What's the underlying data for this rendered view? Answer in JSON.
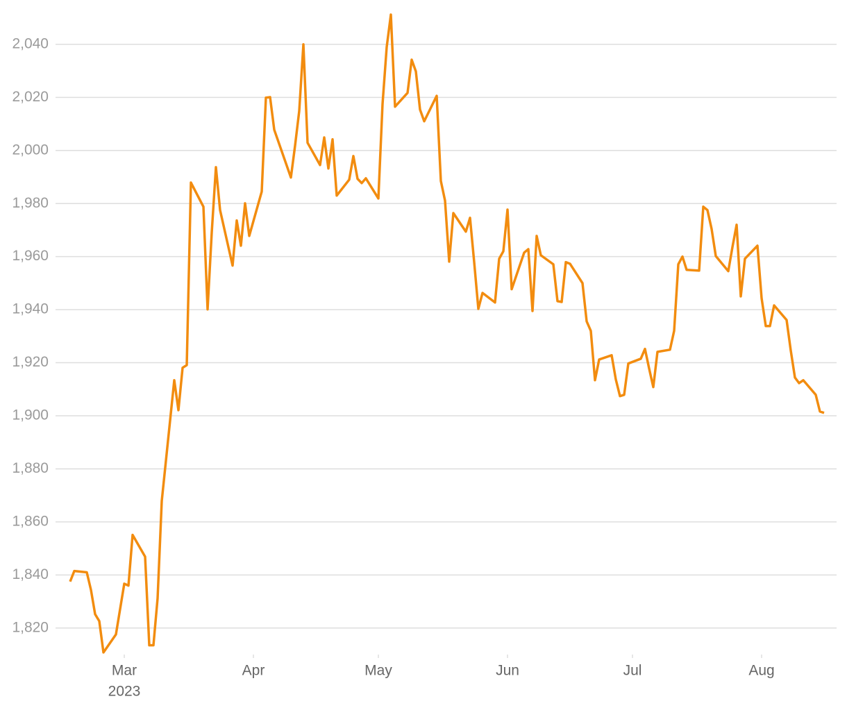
{
  "chart_data": {
    "type": "line",
    "x": [
      47,
      48,
      51,
      52,
      53,
      54,
      55,
      58,
      60,
      61,
      62,
      65,
      66,
      67,
      68,
      69,
      72,
      73,
      74,
      75,
      76,
      79,
      80,
      81,
      82,
      83,
      86,
      87,
      88,
      89,
      90,
      93,
      94,
      95,
      96,
      100,
      101,
      102,
      103,
      104,
      107,
      108,
      109,
      110,
      111,
      114,
      115,
      116,
      117,
      118,
      121,
      122,
      123,
      124,
      125,
      128,
      129,
      130,
      131,
      132,
      135,
      136,
      137,
      138,
      139,
      142,
      143,
      144,
      145,
      146,
      149,
      150,
      151,
      152,
      153,
      156,
      157,
      158,
      159,
      160,
      163,
      164,
      165,
      166,
      167,
      170,
      171,
      172,
      173,
      174,
      177,
      178,
      179,
      180,
      181,
      184,
      185,
      186,
      187,
      188,
      191,
      192,
      193,
      194,
      195,
      198,
      199,
      200,
      201,
      202,
      205,
      206,
      207,
      208,
      209,
      212,
      213,
      214,
      215,
      216,
      219,
      220,
      221,
      222,
      223,
      226,
      227,
      228
    ],
    "series": [
      {
        "color": "#f28c0f",
        "values": [
          1837.5,
          1841.5,
          1841.0,
          1834.4,
          1825.2,
          1822.6,
          1810.8,
          1817.6,
          1836.7,
          1836.0,
          1855.1,
          1846.9,
          1813.5,
          1813.5,
          1831.2,
          1867.9,
          1913.4,
          1902.1,
          1918.1,
          1919.1,
          1987.9,
          1978.8,
          1940.1,
          1969.1,
          1993.7,
          1977.5,
          1956.6,
          1973.6,
          1964.1,
          1980.1,
          1967.8,
          1984.5,
          2019.9,
          2020.1,
          2007.8,
          1989.8,
          2001.8,
          2014.9,
          2040.0,
          2002.9,
          1994.5,
          2004.9,
          1993.2,
          2004.2,
          1983.0,
          1989.0,
          1997.9,
          1989.3,
          1987.7,
          1989.5,
          1981.9,
          2017.5,
          2039.0,
          2051.2,
          2016.5,
          2021.7,
          2034.2,
          2029.8,
          2015.4,
          2011.0,
          2020.6,
          1988.5,
          1981.1,
          1958.1,
          1976.4,
          1969.4,
          1974.6,
          1957.9,
          1940.3,
          1946.3,
          1942.7,
          1959.2,
          1962.0,
          1977.7,
          1947.7,
          1961.5,
          1962.8,
          1939.5,
          1967.8,
          1960.5,
          1957.1,
          1943.2,
          1942.9,
          1957.9,
          1957.3,
          1950.0,
          1935.6,
          1932.0,
          1913.4,
          1921.2,
          1922.8,
          1913.7,
          1907.4,
          1907.9,
          1919.7,
          1921.5,
          1925.2,
          1917.8,
          1910.8,
          1924.1,
          1924.9,
          1932.0,
          1957.1,
          1960.0,
          1955.0,
          1954.7,
          1978.8,
          1977.5,
          1970.4,
          1960.2,
          1954.5,
          1963.6,
          1972.0,
          1945.0,
          1959.2,
          1964.1,
          1944.3,
          1933.8,
          1933.8,
          1941.6,
          1936.1,
          1924.6,
          1914.4,
          1912.3,
          1913.4,
          1907.9,
          1901.6,
          1901.1
        ]
      }
    ],
    "xlim": [
      43.5,
      231
    ],
    "xticks": [
      {
        "value": 60,
        "label": "Mar"
      },
      {
        "value": 91,
        "label": "Apr"
      },
      {
        "value": 121,
        "label": "May"
      },
      {
        "value": 152,
        "label": "Jun"
      },
      {
        "value": 182,
        "label": "Jul"
      },
      {
        "value": 213,
        "label": "Aug"
      }
    ],
    "x_year_label": "2023",
    "ylim": [
      1810,
      2052
    ],
    "yticks": [
      {
        "value": 1820,
        "label": "1,820"
      },
      {
        "value": 1840,
        "label": "1,840"
      },
      {
        "value": 1860,
        "label": "1,860"
      },
      {
        "value": 1880,
        "label": "1,880"
      },
      {
        "value": 1900,
        "label": "1,900"
      },
      {
        "value": 1920,
        "label": "1,920"
      },
      {
        "value": 1940,
        "label": "1,940"
      },
      {
        "value": 1960,
        "label": "1,960"
      },
      {
        "value": 1980,
        "label": "1,980"
      },
      {
        "value": 2000,
        "label": "2,000"
      },
      {
        "value": 2020,
        "label": "2,020"
      },
      {
        "value": 2040,
        "label": "2,040"
      }
    ],
    "grid": true
  }
}
